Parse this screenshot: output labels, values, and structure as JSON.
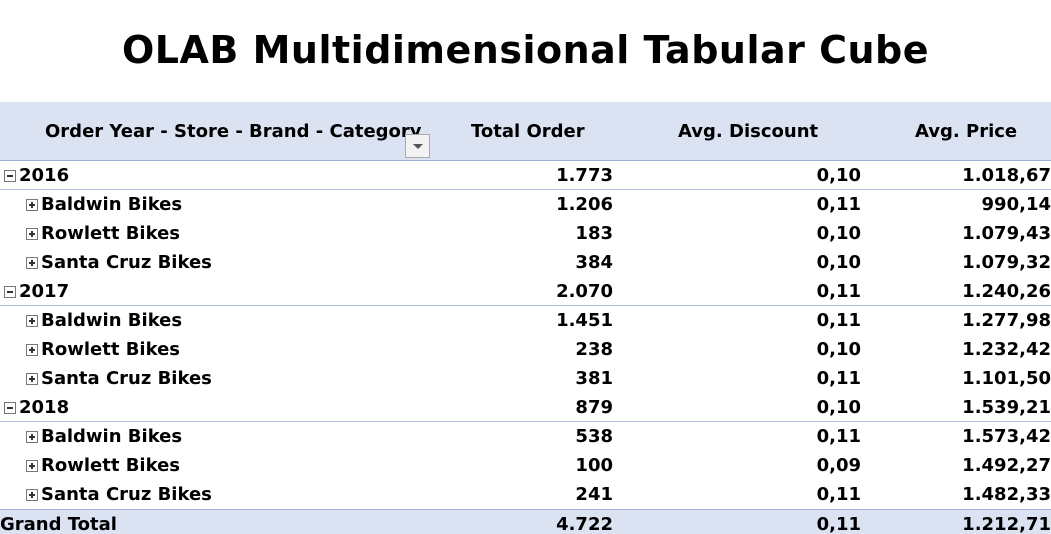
{
  "title": "OLAB Multidimensional Tabular Cube",
  "header": {
    "rows_label": "Order Year - Store - Brand - Category",
    "total_order": "Total Order",
    "avg_discount": "Avg. Discount",
    "avg_price": "Avg. Price"
  },
  "rows": [
    {
      "level": "year",
      "label": "2016",
      "total": "1.773",
      "discount": "0,10",
      "price": "1.018,67"
    },
    {
      "level": "store",
      "label": "Baldwin Bikes",
      "total": "1.206",
      "discount": "0,11",
      "price": "990,14"
    },
    {
      "level": "store",
      "label": "Rowlett Bikes",
      "total": "183",
      "discount": "0,10",
      "price": "1.079,43"
    },
    {
      "level": "store",
      "label": "Santa Cruz Bikes",
      "total": "384",
      "discount": "0,10",
      "price": "1.079,32"
    },
    {
      "level": "year",
      "label": "2017",
      "total": "2.070",
      "discount": "0,11",
      "price": "1.240,26"
    },
    {
      "level": "store",
      "label": "Baldwin Bikes",
      "total": "1.451",
      "discount": "0,11",
      "price": "1.277,98"
    },
    {
      "level": "store",
      "label": "Rowlett Bikes",
      "total": "238",
      "discount": "0,10",
      "price": "1.232,42"
    },
    {
      "level": "store",
      "label": "Santa Cruz Bikes",
      "total": "381",
      "discount": "0,11",
      "price": "1.101,50"
    },
    {
      "level": "year",
      "label": "2018",
      "total": "879",
      "discount": "0,10",
      "price": "1.539,21"
    },
    {
      "level": "store",
      "label": "Baldwin Bikes",
      "total": "538",
      "discount": "0,11",
      "price": "1.573,42"
    },
    {
      "level": "store",
      "label": "Rowlett Bikes",
      "total": "100",
      "discount": "0,09",
      "price": "1.492,27"
    },
    {
      "level": "store",
      "label": "Santa Cruz Bikes",
      "total": "241",
      "discount": "0,11",
      "price": "1.482,33"
    }
  ],
  "grand_total": {
    "label": "Grand Total",
    "total": "4.722",
    "discount": "0,11",
    "price": "1.212,71"
  },
  "colors": {
    "header_bg": "#dbe3f3",
    "border": "#9fb1d6"
  },
  "icons": {
    "year_toggle": "minus-box-icon",
    "store_toggle": "plus-box-icon",
    "filter": "dropdown-filter-icon"
  }
}
